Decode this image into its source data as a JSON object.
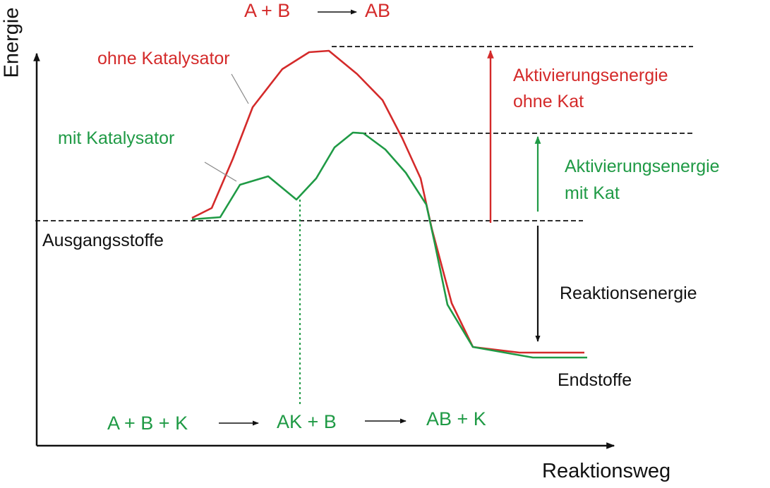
{
  "axes": {
    "y_label": "Energie",
    "x_label": "Reaktionsweg"
  },
  "top_equation": {
    "left": "A + B",
    "right": "AB"
  },
  "curves": {
    "uncatalyzed": {
      "label": "ohne Katalysator",
      "color": "#d42a2a"
    },
    "catalyzed": {
      "label": "mit Katalysator",
      "color": "#1f9a45"
    }
  },
  "levels": {
    "reactants": "Ausgangsstoffe",
    "products": "Endstoffe"
  },
  "arrows": {
    "activation_without": [
      "Aktivierungsenergie",
      "ohne Kat"
    ],
    "activation_with": [
      "Aktivierungsenergie",
      "mit Kat"
    ],
    "reaction_energy": "Reaktionsenergie"
  },
  "bottom_equation": {
    "step1": "A + B + K",
    "step2": "AK + B",
    "step3": "AB + K"
  }
}
